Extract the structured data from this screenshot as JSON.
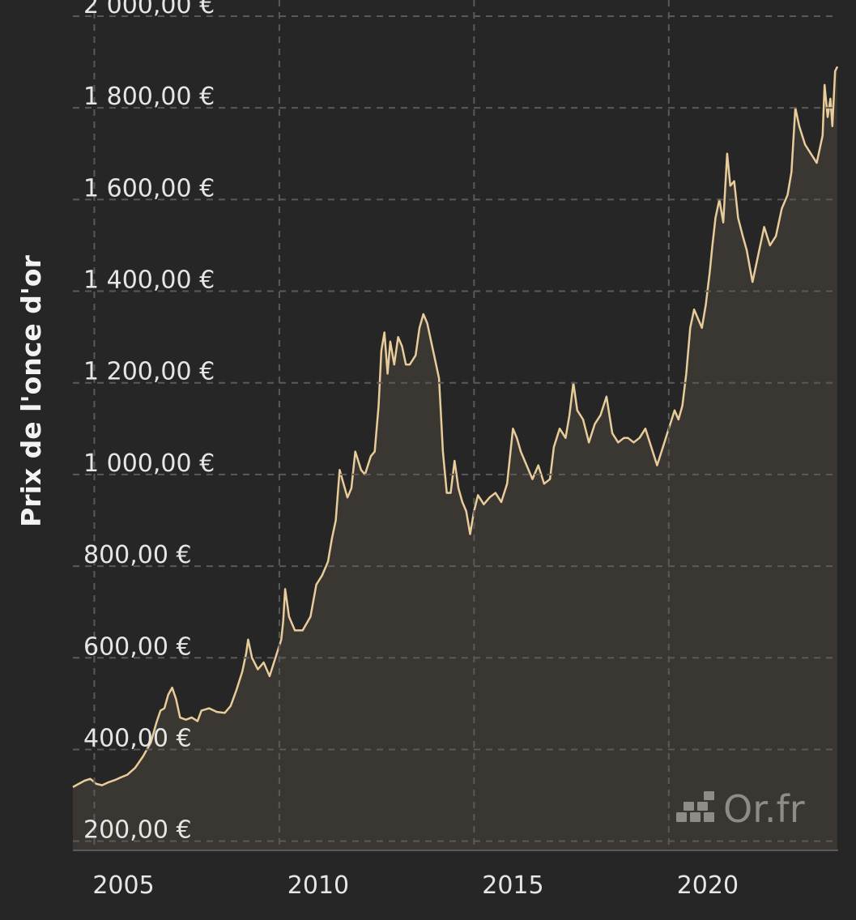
{
  "chart_data": {
    "type": "area",
    "title": "",
    "ylabel": "Prix de l'once d'or",
    "xlabel": "",
    "currency": "€",
    "ylim": [
      180,
      2000
    ],
    "xlim": [
      2003.7,
      2023.35
    ],
    "y_ticks": [
      {
        "value": 200,
        "label": "200,00 €"
      },
      {
        "value": 400,
        "label": "400,00 €"
      },
      {
        "value": 600,
        "label": "600,00 €"
      },
      {
        "value": 800,
        "label": "800,00 €"
      },
      {
        "value": 1000,
        "label": "1 000,00 €"
      },
      {
        "value": 1200,
        "label": "1 200,00 €"
      },
      {
        "value": 1400,
        "label": "1 400,00 €"
      },
      {
        "value": 1600,
        "label": "1 600,00 €"
      },
      {
        "value": 1800,
        "label": "1 800,00 €"
      },
      {
        "value": 2000,
        "label": "2 000,00 €"
      }
    ],
    "x_ticks": [
      {
        "value": 2005,
        "label": "2005"
      },
      {
        "value": 2010,
        "label": "2010"
      },
      {
        "value": 2015,
        "label": "2015"
      },
      {
        "value": 2020,
        "label": "2020"
      }
    ],
    "x_gridlines": [
      2004.25,
      2009.0,
      2014.0,
      2019.0
    ],
    "grid": true,
    "colors": {
      "line": "#e8cc9a",
      "fill": "#3a3632",
      "background": "#262626",
      "grid": "#5a5a5a"
    },
    "series": [
      {
        "values": [
          [
            2003.7,
            318
          ],
          [
            2003.85,
            325
          ],
          [
            2004.0,
            332
          ],
          [
            2004.15,
            336
          ],
          [
            2004.3,
            325
          ],
          [
            2004.45,
            322
          ],
          [
            2004.6,
            328
          ],
          [
            2004.8,
            334
          ],
          [
            2004.95,
            340
          ],
          [
            2005.1,
            345
          ],
          [
            2005.3,
            360
          ],
          [
            2005.5,
            385
          ],
          [
            2005.7,
            415
          ],
          [
            2005.85,
            460
          ],
          [
            2005.95,
            485
          ],
          [
            2006.05,
            490
          ],
          [
            2006.15,
            520
          ],
          [
            2006.25,
            535
          ],
          [
            2006.35,
            510
          ],
          [
            2006.45,
            470
          ],
          [
            2006.6,
            465
          ],
          [
            2006.75,
            470
          ],
          [
            2006.9,
            462
          ],
          [
            2007.0,
            485
          ],
          [
            2007.2,
            490
          ],
          [
            2007.4,
            482
          ],
          [
            2007.6,
            480
          ],
          [
            2007.75,
            495
          ],
          [
            2007.9,
            530
          ],
          [
            2008.05,
            570
          ],
          [
            2008.15,
            610
          ],
          [
            2008.2,
            640
          ],
          [
            2008.3,
            600
          ],
          [
            2008.45,
            575
          ],
          [
            2008.6,
            590
          ],
          [
            2008.75,
            560
          ],
          [
            2008.9,
            600
          ],
          [
            2009.05,
            640
          ],
          [
            2009.1,
            680
          ],
          [
            2009.15,
            750
          ],
          [
            2009.25,
            690
          ],
          [
            2009.4,
            660
          ],
          [
            2009.6,
            660
          ],
          [
            2009.8,
            690
          ],
          [
            2009.95,
            760
          ],
          [
            2010.1,
            780
          ],
          [
            2010.25,
            810
          ],
          [
            2010.35,
            860
          ],
          [
            2010.45,
            900
          ],
          [
            2010.55,
            1010
          ],
          [
            2010.65,
            980
          ],
          [
            2010.75,
            950
          ],
          [
            2010.85,
            970
          ],
          [
            2010.95,
            1050
          ],
          [
            2011.1,
            1010
          ],
          [
            2011.2,
            1000
          ],
          [
            2011.35,
            1040
          ],
          [
            2011.45,
            1050
          ],
          [
            2011.55,
            1150
          ],
          [
            2011.62,
            1270
          ],
          [
            2011.7,
            1310
          ],
          [
            2011.78,
            1220
          ],
          [
            2011.85,
            1290
          ],
          [
            2011.95,
            1240
          ],
          [
            2012.05,
            1300
          ],
          [
            2012.15,
            1280
          ],
          [
            2012.25,
            1240
          ],
          [
            2012.35,
            1240
          ],
          [
            2012.5,
            1260
          ],
          [
            2012.6,
            1320
          ],
          [
            2012.7,
            1350
          ],
          [
            2012.8,
            1330
          ],
          [
            2012.9,
            1290
          ],
          [
            2013.0,
            1250
          ],
          [
            2013.1,
            1210
          ],
          [
            2013.2,
            1050
          ],
          [
            2013.3,
            960
          ],
          [
            2013.4,
            960
          ],
          [
            2013.5,
            1030
          ],
          [
            2013.6,
            970
          ],
          [
            2013.7,
            940
          ],
          [
            2013.8,
            920
          ],
          [
            2013.9,
            870
          ],
          [
            2014.0,
            920
          ],
          [
            2014.1,
            955
          ],
          [
            2014.25,
            935
          ],
          [
            2014.4,
            950
          ],
          [
            2014.55,
            960
          ],
          [
            2014.7,
            940
          ],
          [
            2014.85,
            980
          ],
          [
            2015.0,
            1100
          ],
          [
            2015.1,
            1080
          ],
          [
            2015.2,
            1050
          ],
          [
            2015.35,
            1020
          ],
          [
            2015.5,
            990
          ],
          [
            2015.65,
            1020
          ],
          [
            2015.8,
            980
          ],
          [
            2015.95,
            990
          ],
          [
            2016.05,
            1060
          ],
          [
            2016.2,
            1100
          ],
          [
            2016.35,
            1080
          ],
          [
            2016.45,
            1130
          ],
          [
            2016.55,
            1200
          ],
          [
            2016.65,
            1140
          ],
          [
            2016.8,
            1120
          ],
          [
            2016.95,
            1070
          ],
          [
            2017.1,
            1110
          ],
          [
            2017.25,
            1130
          ],
          [
            2017.4,
            1170
          ],
          [
            2017.55,
            1090
          ],
          [
            2017.7,
            1070
          ],
          [
            2017.85,
            1080
          ],
          [
            2017.95,
            1080
          ],
          [
            2018.1,
            1070
          ],
          [
            2018.25,
            1080
          ],
          [
            2018.4,
            1100
          ],
          [
            2018.55,
            1060
          ],
          [
            2018.7,
            1020
          ],
          [
            2018.85,
            1060
          ],
          [
            2019.0,
            1100
          ],
          [
            2019.15,
            1140
          ],
          [
            2019.25,
            1120
          ],
          [
            2019.35,
            1150
          ],
          [
            2019.45,
            1220
          ],
          [
            2019.55,
            1320
          ],
          [
            2019.65,
            1360
          ],
          [
            2019.75,
            1340
          ],
          [
            2019.85,
            1320
          ],
          [
            2019.95,
            1370
          ],
          [
            2020.05,
            1440
          ],
          [
            2020.12,
            1500
          ],
          [
            2020.2,
            1560
          ],
          [
            2020.3,
            1600
          ],
          [
            2020.4,
            1550
          ],
          [
            2020.5,
            1700
          ],
          [
            2020.58,
            1630
          ],
          [
            2020.68,
            1640
          ],
          [
            2020.78,
            1560
          ],
          [
            2020.9,
            1520
          ],
          [
            2021.0,
            1490
          ],
          [
            2021.15,
            1420
          ],
          [
            2021.3,
            1480
          ],
          [
            2021.45,
            1540
          ],
          [
            2021.6,
            1500
          ],
          [
            2021.75,
            1520
          ],
          [
            2021.9,
            1580
          ],
          [
            2022.05,
            1610
          ],
          [
            2022.15,
            1660
          ],
          [
            2022.25,
            1800
          ],
          [
            2022.35,
            1760
          ],
          [
            2022.5,
            1720
          ],
          [
            2022.65,
            1700
          ],
          [
            2022.8,
            1680
          ],
          [
            2022.95,
            1740
          ],
          [
            2023.0,
            1850
          ],
          [
            2023.08,
            1780
          ],
          [
            2023.15,
            1820
          ],
          [
            2023.2,
            1760
          ],
          [
            2023.27,
            1880
          ],
          [
            2023.33,
            1890
          ]
        ]
      }
    ]
  },
  "watermark": {
    "text": "Or.fr"
  }
}
